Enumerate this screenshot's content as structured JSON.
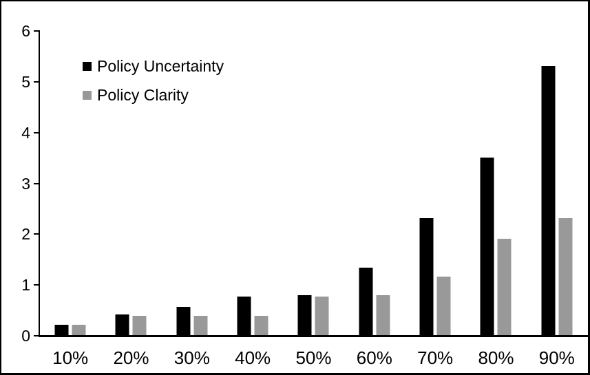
{
  "chart_data": {
    "type": "bar",
    "title": "",
    "xlabel": "",
    "ylabel": "",
    "categories": [
      "10%",
      "20%",
      "30%",
      "40%",
      "50%",
      "60%",
      "70%",
      "80%",
      "90%"
    ],
    "series": [
      {
        "name": "Policy Uncertainty",
        "color": "#000000",
        "values": [
          0.2,
          0.4,
          0.56,
          0.76,
          0.78,
          1.33,
          2.3,
          3.5,
          5.3
        ]
      },
      {
        "name": "Policy Clarity",
        "color": "#999999",
        "values": [
          0.2,
          0.38,
          0.38,
          0.38,
          0.76,
          0.78,
          1.15,
          1.9,
          2.3
        ]
      }
    ],
    "ylim": [
      0,
      6
    ],
    "yticks": [
      "0",
      "1",
      "2",
      "3",
      "4",
      "5",
      "6"
    ],
    "grid": false,
    "legend_position": "top-left",
    "axis_color": "#000000",
    "background_color": "#ffffff"
  }
}
